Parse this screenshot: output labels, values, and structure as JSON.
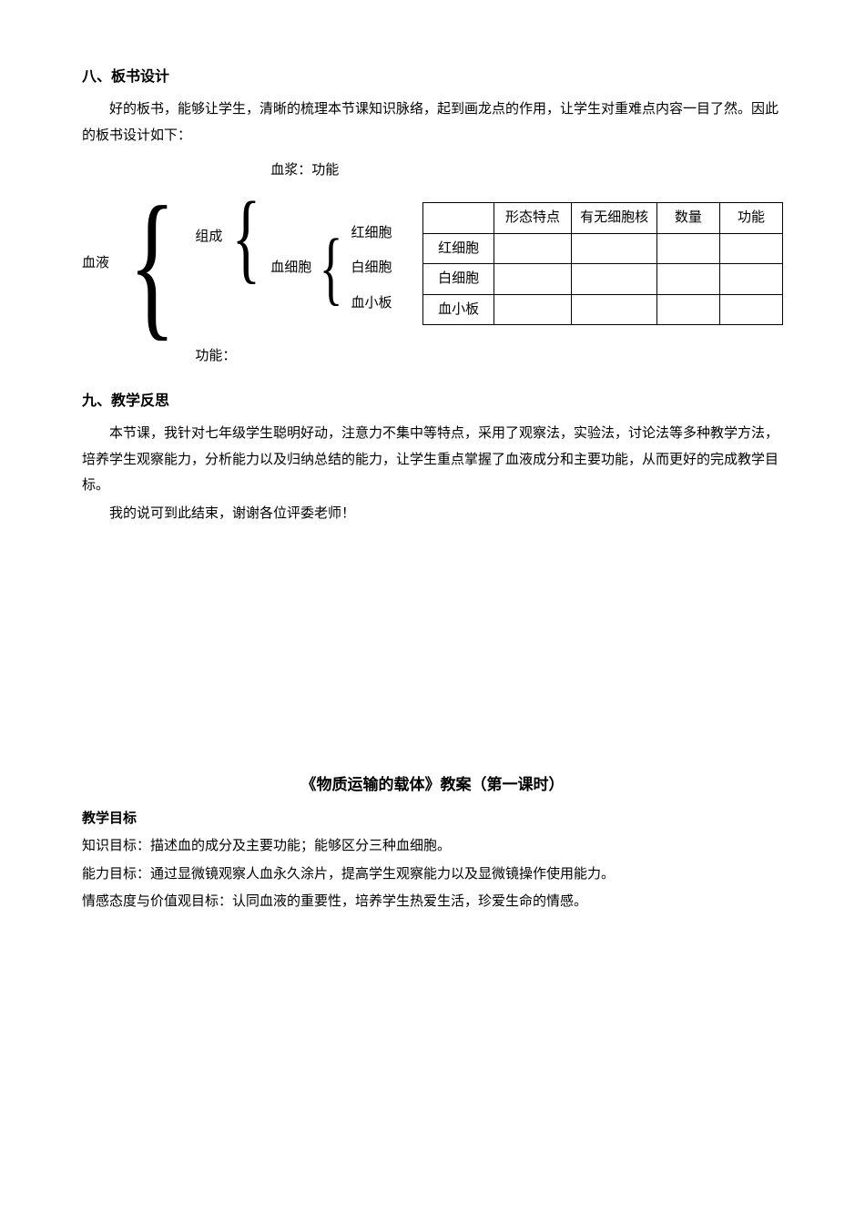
{
  "section8": {
    "heading": "八、板书设计",
    "p1": "好的板书，能够让学生，清晰的梳理本节课知识脉络，起到画龙点的作用，让学生对重难点内容一目了然。因此的板书设计如下："
  },
  "tree": {
    "root": "血液",
    "branch1": "组成",
    "leaf_plasma": "血浆：功能",
    "leaf_cells": "血细胞",
    "cells": {
      "red": "红细胞",
      "white": "白细胞",
      "platelet": "血小板"
    },
    "branch2": "功能："
  },
  "table": {
    "headers": [
      "",
      "形态特点",
      "有无细胞核",
      "数量",
      "功能"
    ],
    "rows": [
      [
        "红细胞",
        "",
        "",
        "",
        ""
      ],
      [
        "白细胞",
        "",
        "",
        "",
        ""
      ],
      [
        "血小板",
        "",
        "",
        "",
        ""
      ]
    ]
  },
  "section9": {
    "heading": "九、教学反思",
    "p1": "本节课，我针对七年级学生聪明好动，注意力不集中等特点，采用了观察法，实验法，讨论法等多种教学方法，培养学生观察能力，分析能力以及归纳总结的能力，让学生重点掌握了血液成分和主要功能，从而更好的完成教学目标。",
    "p2": "我的说可到此结束，谢谢各位评委老师！"
  },
  "lesson": {
    "title": "《物质运输的载体》教案（第一课时）",
    "obj_heading": "教学目标",
    "k_goal": "知识目标：描述血的成分及主要功能；能够区分三种血细胞。",
    "a_goal": "能力目标：通过显微镜观察人血永久涂片，提高学生观察能力以及显微镜操作使用能力。",
    "e_goal": "情感态度与价值观目标：认同血液的重要性，培养学生热爱生活，珍爱生命的情感。"
  }
}
